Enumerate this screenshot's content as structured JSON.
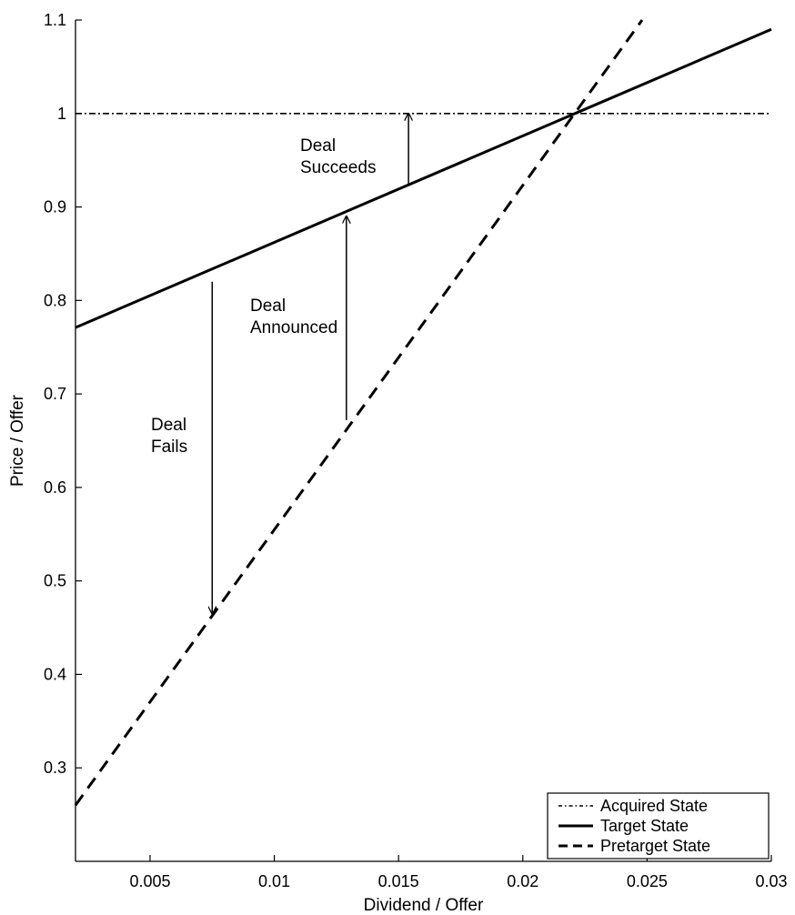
{
  "chart_data": {
    "type": "line",
    "title": "",
    "xlabel": "Dividend / Offer",
    "ylabel": "Price / Offer",
    "xlim": [
      0.002,
      0.03
    ],
    "ylim": [
      0.2,
      1.1
    ],
    "x_ticks": [
      0.005,
      0.01,
      0.015,
      0.02,
      0.025,
      0.03
    ],
    "x_tick_labels": [
      "0.005",
      "0.01",
      "0.015",
      "0.02",
      "0.025",
      "0.03"
    ],
    "y_ticks": [
      0.3,
      0.4,
      0.5,
      0.6,
      0.7,
      0.8,
      0.9,
      1.0,
      1.1
    ],
    "y_tick_labels": [
      "0.3",
      "0.4",
      "0.5",
      "0.6",
      "0.7",
      "0.8",
      "0.9",
      "1",
      "1.1"
    ],
    "grid": false,
    "legend_position": "bottom-right",
    "series": [
      {
        "name": "Acquired State",
        "style": "dashdot",
        "x": [
          0.002,
          0.03
        ],
        "y": [
          1.0,
          1.0
        ]
      },
      {
        "name": "Target State",
        "style": "solid",
        "x": [
          0.002,
          0.03
        ],
        "y": [
          0.771,
          1.09
        ]
      },
      {
        "name": "Pretarget State",
        "style": "dashed",
        "x": [
          0.002,
          0.0248
        ],
        "y": [
          0.26,
          1.1
        ]
      }
    ],
    "annotations": [
      {
        "lines": [
          "Deal",
          "Succeeds"
        ],
        "arrow": {
          "x": 0.0154,
          "y_from": 0.923,
          "y_to": 1.0
        }
      },
      {
        "lines": [
          "Deal",
          "Announced"
        ],
        "arrow": {
          "x": 0.0129,
          "y_from": 0.672,
          "y_to": 0.89
        }
      },
      {
        "lines": [
          "Deal",
          "Fails"
        ],
        "arrow": {
          "x": 0.0075,
          "y_from": 0.82,
          "y_to": 0.465
        }
      }
    ]
  }
}
